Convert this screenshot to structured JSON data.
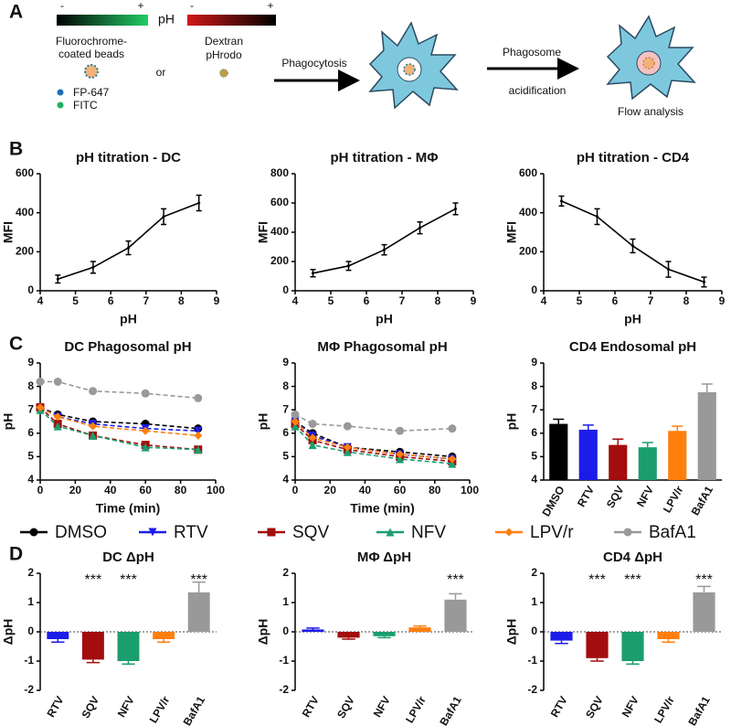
{
  "panel_labels": [
    "A",
    "B",
    "C",
    "D"
  ],
  "panel_a": {
    "scale_minus_1": "-",
    "scale_plus_1": "+",
    "scale_label": "pH",
    "scale_minus_2": "-",
    "scale_plus_2": "+",
    "beads_line1": "Fluorochrome-",
    "beads_line2": "coated beads",
    "or": "or",
    "dextran_line1": "Dextran",
    "dextran_line2": "pHrodo",
    "dye_1": "FP-647",
    "dye_2": "FITC",
    "step_1": "Phagocytosis",
    "step_2_line1": "Phagosome",
    "step_2_line2": "acidification",
    "step_3": "Flow analysis"
  },
  "chart_data": [
    {
      "type": "line",
      "title": "pH titration - DC",
      "x_label": "pH",
      "y_label": "MFI",
      "x": [
        4.5,
        5.5,
        6.5,
        7.5,
        8.5
      ],
      "values": [
        60,
        120,
        220,
        380,
        450
      ],
      "errors": [
        20,
        30,
        35,
        40,
        40
      ],
      "color": "#000000",
      "xlim": [
        4,
        9
      ],
      "xticks": [
        4,
        5,
        6,
        7,
        8,
        9
      ],
      "ylim": [
        0,
        600
      ],
      "yticks": [
        0,
        200,
        400,
        600
      ]
    },
    {
      "type": "line",
      "title": "pH titration - MΦ",
      "x_label": "pH",
      "y_label": "MFI",
      "x": [
        4.5,
        5.5,
        6.5,
        7.5,
        8.5
      ],
      "values": [
        120,
        170,
        280,
        430,
        560
      ],
      "errors": [
        25,
        30,
        35,
        40,
        40
      ],
      "color": "#000000",
      "xlim": [
        4,
        9
      ],
      "xticks": [
        4,
        5,
        6,
        7,
        8,
        9
      ],
      "ylim": [
        0,
        800
      ],
      "yticks": [
        0,
        200,
        400,
        600,
        800
      ]
    },
    {
      "type": "line",
      "title": "pH titration - CD4",
      "x_label": "pH",
      "y_label": "MFI",
      "x": [
        4.5,
        5.5,
        6.5,
        7.5,
        8.5
      ],
      "values": [
        460,
        380,
        230,
        110,
        45
      ],
      "errors": [
        25,
        40,
        35,
        40,
        25
      ],
      "color": "#000000",
      "xlim": [
        4,
        9
      ],
      "xticks": [
        4,
        5,
        6,
        7,
        8,
        9
      ],
      "ylim": [
        0,
        600
      ],
      "yticks": [
        0,
        200,
        400,
        600
      ]
    },
    {
      "type": "line",
      "title": "DC Phagosomal pH",
      "x_label": "Time (min)",
      "y_label": "pH",
      "x": [
        0,
        10,
        30,
        60,
        90
      ],
      "line_style": "dashed",
      "legend": true,
      "series": [
        {
          "name": "DMSO",
          "color": "#000000",
          "marker": "circle",
          "values": [
            7.1,
            6.8,
            6.5,
            6.4,
            6.2
          ]
        },
        {
          "name": "RTV",
          "color": "#1c1ce8",
          "marker": "triangle-down",
          "values": [
            7.1,
            6.7,
            6.4,
            6.2,
            6.1
          ]
        },
        {
          "name": "SQV",
          "color": "#a30d0d",
          "marker": "square",
          "values": [
            7.1,
            6.4,
            5.9,
            5.5,
            5.3
          ]
        },
        {
          "name": "NFV",
          "color": "#1a9e6e",
          "marker": "triangle",
          "values": [
            7.0,
            6.3,
            5.9,
            5.4,
            5.3
          ]
        },
        {
          "name": "LPV/r",
          "color": "#ff7f0e",
          "marker": "diamond",
          "values": [
            7.1,
            6.7,
            6.3,
            6.1,
            5.9
          ]
        },
        {
          "name": "BafA1",
          "color": "#999999",
          "marker": "circle",
          "values": [
            8.2,
            8.2,
            7.8,
            7.7,
            7.5
          ]
        }
      ],
      "xlim": [
        0,
        100
      ],
      "xticks": [
        0,
        20,
        40,
        60,
        80,
        100
      ],
      "ylim": [
        4,
        9
      ],
      "yticks": [
        4,
        5,
        6,
        7,
        8,
        9
      ]
    },
    {
      "type": "line",
      "title": "MΦ Phagosomal pH",
      "x_label": "Time (min)",
      "y_label": "pH",
      "x": [
        0,
        10,
        30,
        60,
        90
      ],
      "line_style": "dashed",
      "series": [
        {
          "name": "DMSO",
          "color": "#000000",
          "marker": "circle",
          "values": [
            6.5,
            6.0,
            5.4,
            5.2,
            5.0
          ]
        },
        {
          "name": "RTV",
          "color": "#1c1ce8",
          "marker": "triangle-down",
          "values": [
            6.5,
            5.9,
            5.4,
            5.1,
            4.9
          ]
        },
        {
          "name": "SQV",
          "color": "#a30d0d",
          "marker": "square",
          "values": [
            6.4,
            5.7,
            5.3,
            5.0,
            4.8
          ]
        },
        {
          "name": "NFV",
          "color": "#1a9e6e",
          "marker": "triangle",
          "values": [
            6.3,
            5.5,
            5.2,
            4.9,
            4.7
          ]
        },
        {
          "name": "LPV/r",
          "color": "#ff7f0e",
          "marker": "diamond",
          "values": [
            6.5,
            5.8,
            5.4,
            5.1,
            4.9
          ]
        },
        {
          "name": "BafA1",
          "color": "#999999",
          "marker": "circle",
          "values": [
            6.8,
            6.4,
            6.3,
            6.1,
            6.2
          ]
        }
      ],
      "xlim": [
        0,
        100
      ],
      "xticks": [
        0,
        20,
        40,
        60,
        80,
        100
      ],
      "ylim": [
        4,
        9
      ],
      "yticks": [
        4,
        5,
        6,
        7,
        8,
        9
      ]
    },
    {
      "type": "bar",
      "title": "CD4 Endosomal pH",
      "y_label": "pH",
      "categories": [
        "DMSO",
        "RTV",
        "SQV",
        "NFV",
        "LPV/r",
        "BafA1"
      ],
      "values": [
        6.4,
        6.15,
        5.5,
        5.4,
        6.1,
        7.75
      ],
      "errors": [
        0.2,
        0.2,
        0.25,
        0.2,
        0.2,
        0.35
      ],
      "colors": [
        "#000000",
        "#1c1ce8",
        "#a30d0d",
        "#1a9e6e",
        "#ff7f0e",
        "#999999"
      ],
      "ylim": [
        4,
        9
      ],
      "yticks": [
        4,
        5,
        6,
        7,
        8,
        9
      ]
    },
    {
      "type": "bar",
      "title": "DC ΔpH",
      "y_label": "ΔpH",
      "categories": [
        "RTV",
        "SQV",
        "NFV",
        "LPV/r",
        "BafA1"
      ],
      "values": [
        -0.25,
        -0.95,
        -1.0,
        -0.25,
        1.35
      ],
      "errors": [
        0.1,
        0.1,
        0.1,
        0.1,
        0.35
      ],
      "significance": [
        null,
        "***",
        "***",
        null,
        "***"
      ],
      "colors": [
        "#1c1ce8",
        "#a30d0d",
        "#1a9e6e",
        "#ff7f0e",
        "#999999"
      ],
      "zero_line": true,
      "ylim": [
        -2,
        2
      ],
      "yticks": [
        -2,
        -1,
        0,
        1,
        2
      ]
    },
    {
      "type": "bar",
      "title": "MΦ ΔpH",
      "y_label": "ΔpH",
      "categories": [
        "RTV",
        "SQV",
        "NFV",
        "LPV/r",
        "BafA1"
      ],
      "values": [
        0.08,
        -0.2,
        -0.15,
        0.15,
        1.1
      ],
      "errors": [
        0.05,
        0.05,
        0.05,
        0.05,
        0.2
      ],
      "significance": [
        null,
        null,
        null,
        null,
        "***"
      ],
      "colors": [
        "#1c1ce8",
        "#a30d0d",
        "#1a9e6e",
        "#ff7f0e",
        "#999999"
      ],
      "zero_line": true,
      "ylim": [
        -2,
        2
      ],
      "yticks": [
        -2,
        -1,
        0,
        1,
        2
      ]
    },
    {
      "type": "bar",
      "title": "CD4 ΔpH",
      "y_label": "ΔpH",
      "categories": [
        "RTV",
        "SQV",
        "NFV",
        "LPV/r",
        "BafA1"
      ],
      "values": [
        -0.3,
        -0.9,
        -1.0,
        -0.25,
        1.35
      ],
      "errors": [
        0.1,
        0.1,
        0.1,
        0.1,
        0.2
      ],
      "significance": [
        null,
        "***",
        "***",
        null,
        "***"
      ],
      "colors": [
        "#1c1ce8",
        "#a30d0d",
        "#1a9e6e",
        "#ff7f0e",
        "#999999"
      ],
      "zero_line": true,
      "ylim": [
        -2,
        2
      ],
      "yticks": [
        -2,
        -1,
        0,
        1,
        2
      ]
    }
  ]
}
